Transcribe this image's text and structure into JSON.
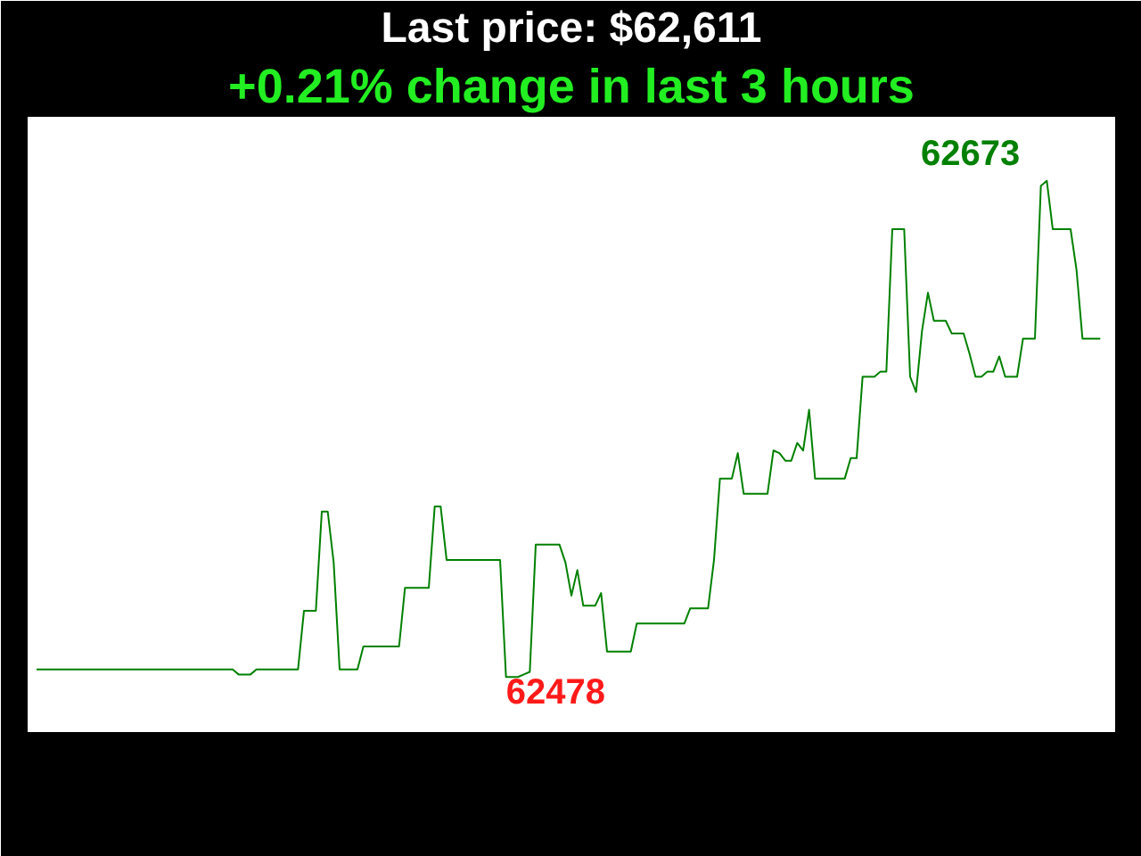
{
  "chart_data": {
    "type": "line",
    "title": "Last price: $62,611",
    "subtitle": "+0.21% change in last 3 hours",
    "tick_labels": false,
    "color": "#008000",
    "categories": [
      null,
      null,
      null,
      null,
      null,
      null,
      null,
      null,
      null,
      null,
      null,
      null,
      null,
      null,
      null,
      null,
      null,
      null,
      null,
      null,
      null,
      null,
      null,
      null,
      null,
      null,
      null,
      null,
      null,
      null,
      null,
      null,
      null,
      null,
      null,
      null,
      null,
      null,
      null,
      null,
      null,
      null,
      null,
      null,
      null,
      null,
      null,
      null,
      null,
      null,
      null,
      null,
      null,
      null,
      null,
      null,
      null,
      null,
      null,
      null,
      null,
      null,
      null,
      null,
      null,
      null,
      null,
      null,
      null,
      null,
      null,
      null,
      null,
      null,
      null,
      null,
      null,
      null,
      null,
      null,
      null,
      null,
      null,
      null,
      null,
      null,
      null,
      null,
      null,
      null,
      null,
      null,
      null,
      null,
      null,
      null,
      null,
      null,
      null,
      null,
      null,
      null,
      null,
      null,
      null,
      null,
      null,
      null,
      null,
      null,
      null,
      null,
      null,
      null,
      null,
      null,
      null,
      null,
      null,
      null,
      null,
      null,
      null,
      null,
      null,
      null,
      null,
      null,
      null,
      null,
      null,
      null,
      null,
      null,
      null,
      null,
      null,
      null,
      null,
      null,
      null,
      null,
      null,
      null,
      null,
      null,
      null,
      null,
      null,
      null,
      null,
      null,
      null,
      null,
      null,
      null,
      null,
      null,
      null,
      null,
      null,
      null,
      null,
      null,
      null,
      null,
      null,
      null,
      null,
      null,
      null,
      null,
      null,
      null,
      null,
      null,
      null,
      null,
      null,
      null
    ],
    "values": [
      62481,
      62481,
      62481,
      62481,
      62481,
      62481,
      62481,
      62481,
      62481,
      62481,
      62481,
      62481,
      62481,
      62481,
      62481,
      62481,
      62481,
      62481,
      62481,
      62481,
      62481,
      62481,
      62481,
      62481,
      62481,
      62481,
      62481,
      62481,
      62481,
      62481,
      62481,
      62481,
      62481,
      62481,
      62479,
      62479,
      62479,
      62481,
      62481,
      62481,
      62481,
      62481,
      62481,
      62481,
      62481,
      62504,
      62504,
      62504,
      62543,
      62543,
      62523,
      62481,
      62481,
      62481,
      62481,
      62490,
      62490,
      62490,
      62490,
      62490,
      62490,
      62490,
      62513,
      62513,
      62513,
      62513,
      62513,
      62545,
      62545,
      62524,
      62524,
      62524,
      62524,
      62524,
      62524,
      62524,
      62524,
      62524,
      62524,
      62478,
      62478,
      62478,
      62479,
      62480,
      62530,
      62530,
      62530,
      62530,
      62530,
      62523,
      62510,
      62520,
      62506,
      62506,
      62506,
      62511,
      62488,
      62488,
      62488,
      62488,
      62488,
      62499,
      62499,
      62499,
      62499,
      62499,
      62499,
      62499,
      62499,
      62499,
      62505,
      62505,
      62505,
      62505,
      62524,
      62556,
      62556,
      62556,
      62566,
      62550,
      62550,
      62550,
      62550,
      62550,
      62567,
      62566,
      62563,
      62563,
      62570,
      62567,
      62583,
      62556,
      62556,
      62556,
      62556,
      62556,
      62556,
      62564,
      62564,
      62596,
      62596,
      62596,
      62598,
      62598,
      62654,
      62654,
      62654,
      62596,
      62590,
      62614,
      62629,
      62618,
      62618,
      62618,
      62613,
      62613,
      62613,
      62605,
      62596,
      62596,
      62598,
      62598,
      62604,
      62596,
      62596,
      62596,
      62611,
      62611,
      62611,
      62671,
      62673,
      62654,
      62654,
      62654,
      62654,
      62638,
      62611,
      62611,
      62611,
      62611
    ],
    "value_labels": [
      null,
      null,
      null,
      null,
      null,
      null,
      null,
      null,
      null,
      null,
      null,
      null,
      null,
      null,
      null,
      null,
      null,
      null,
      null,
      null,
      null,
      null,
      null,
      null,
      null,
      null,
      null,
      null,
      null,
      null,
      null,
      null,
      null,
      null,
      null,
      null,
      null,
      null,
      null,
      null,
      null,
      null,
      null,
      null,
      null,
      null,
      null,
      null,
      null,
      null,
      null,
      null,
      null,
      null,
      null,
      null,
      null,
      null,
      null,
      null,
      null,
      null,
      null,
      null,
      null,
      null,
      null,
      null,
      null,
      null,
      null,
      null,
      null,
      null,
      null,
      null,
      null,
      null,
      null,
      "62478",
      null,
      null,
      null,
      null,
      null,
      null,
      null,
      null,
      null,
      null,
      null,
      null,
      null,
      null,
      null,
      null,
      null,
      null,
      null,
      null,
      null,
      null,
      null,
      null,
      null,
      null,
      null,
      null,
      null,
      null,
      null,
      null,
      null,
      null,
      null,
      null,
      null,
      null,
      null,
      null,
      null,
      null,
      null,
      null,
      null,
      null,
      null,
      null,
      null,
      null,
      null,
      null,
      null,
      null,
      null,
      null,
      null,
      null,
      null,
      null,
      null,
      null,
      null,
      null,
      null,
      null,
      null,
      null,
      null,
      null,
      null,
      null,
      null,
      null,
      null,
      null,
      null,
      null,
      null,
      null,
      null,
      null,
      null,
      null,
      null,
      null,
      null,
      null,
      null,
      null,
      "62673",
      null,
      null,
      null,
      null,
      null,
      null,
      null,
      null,
      null
    ]
  }
}
